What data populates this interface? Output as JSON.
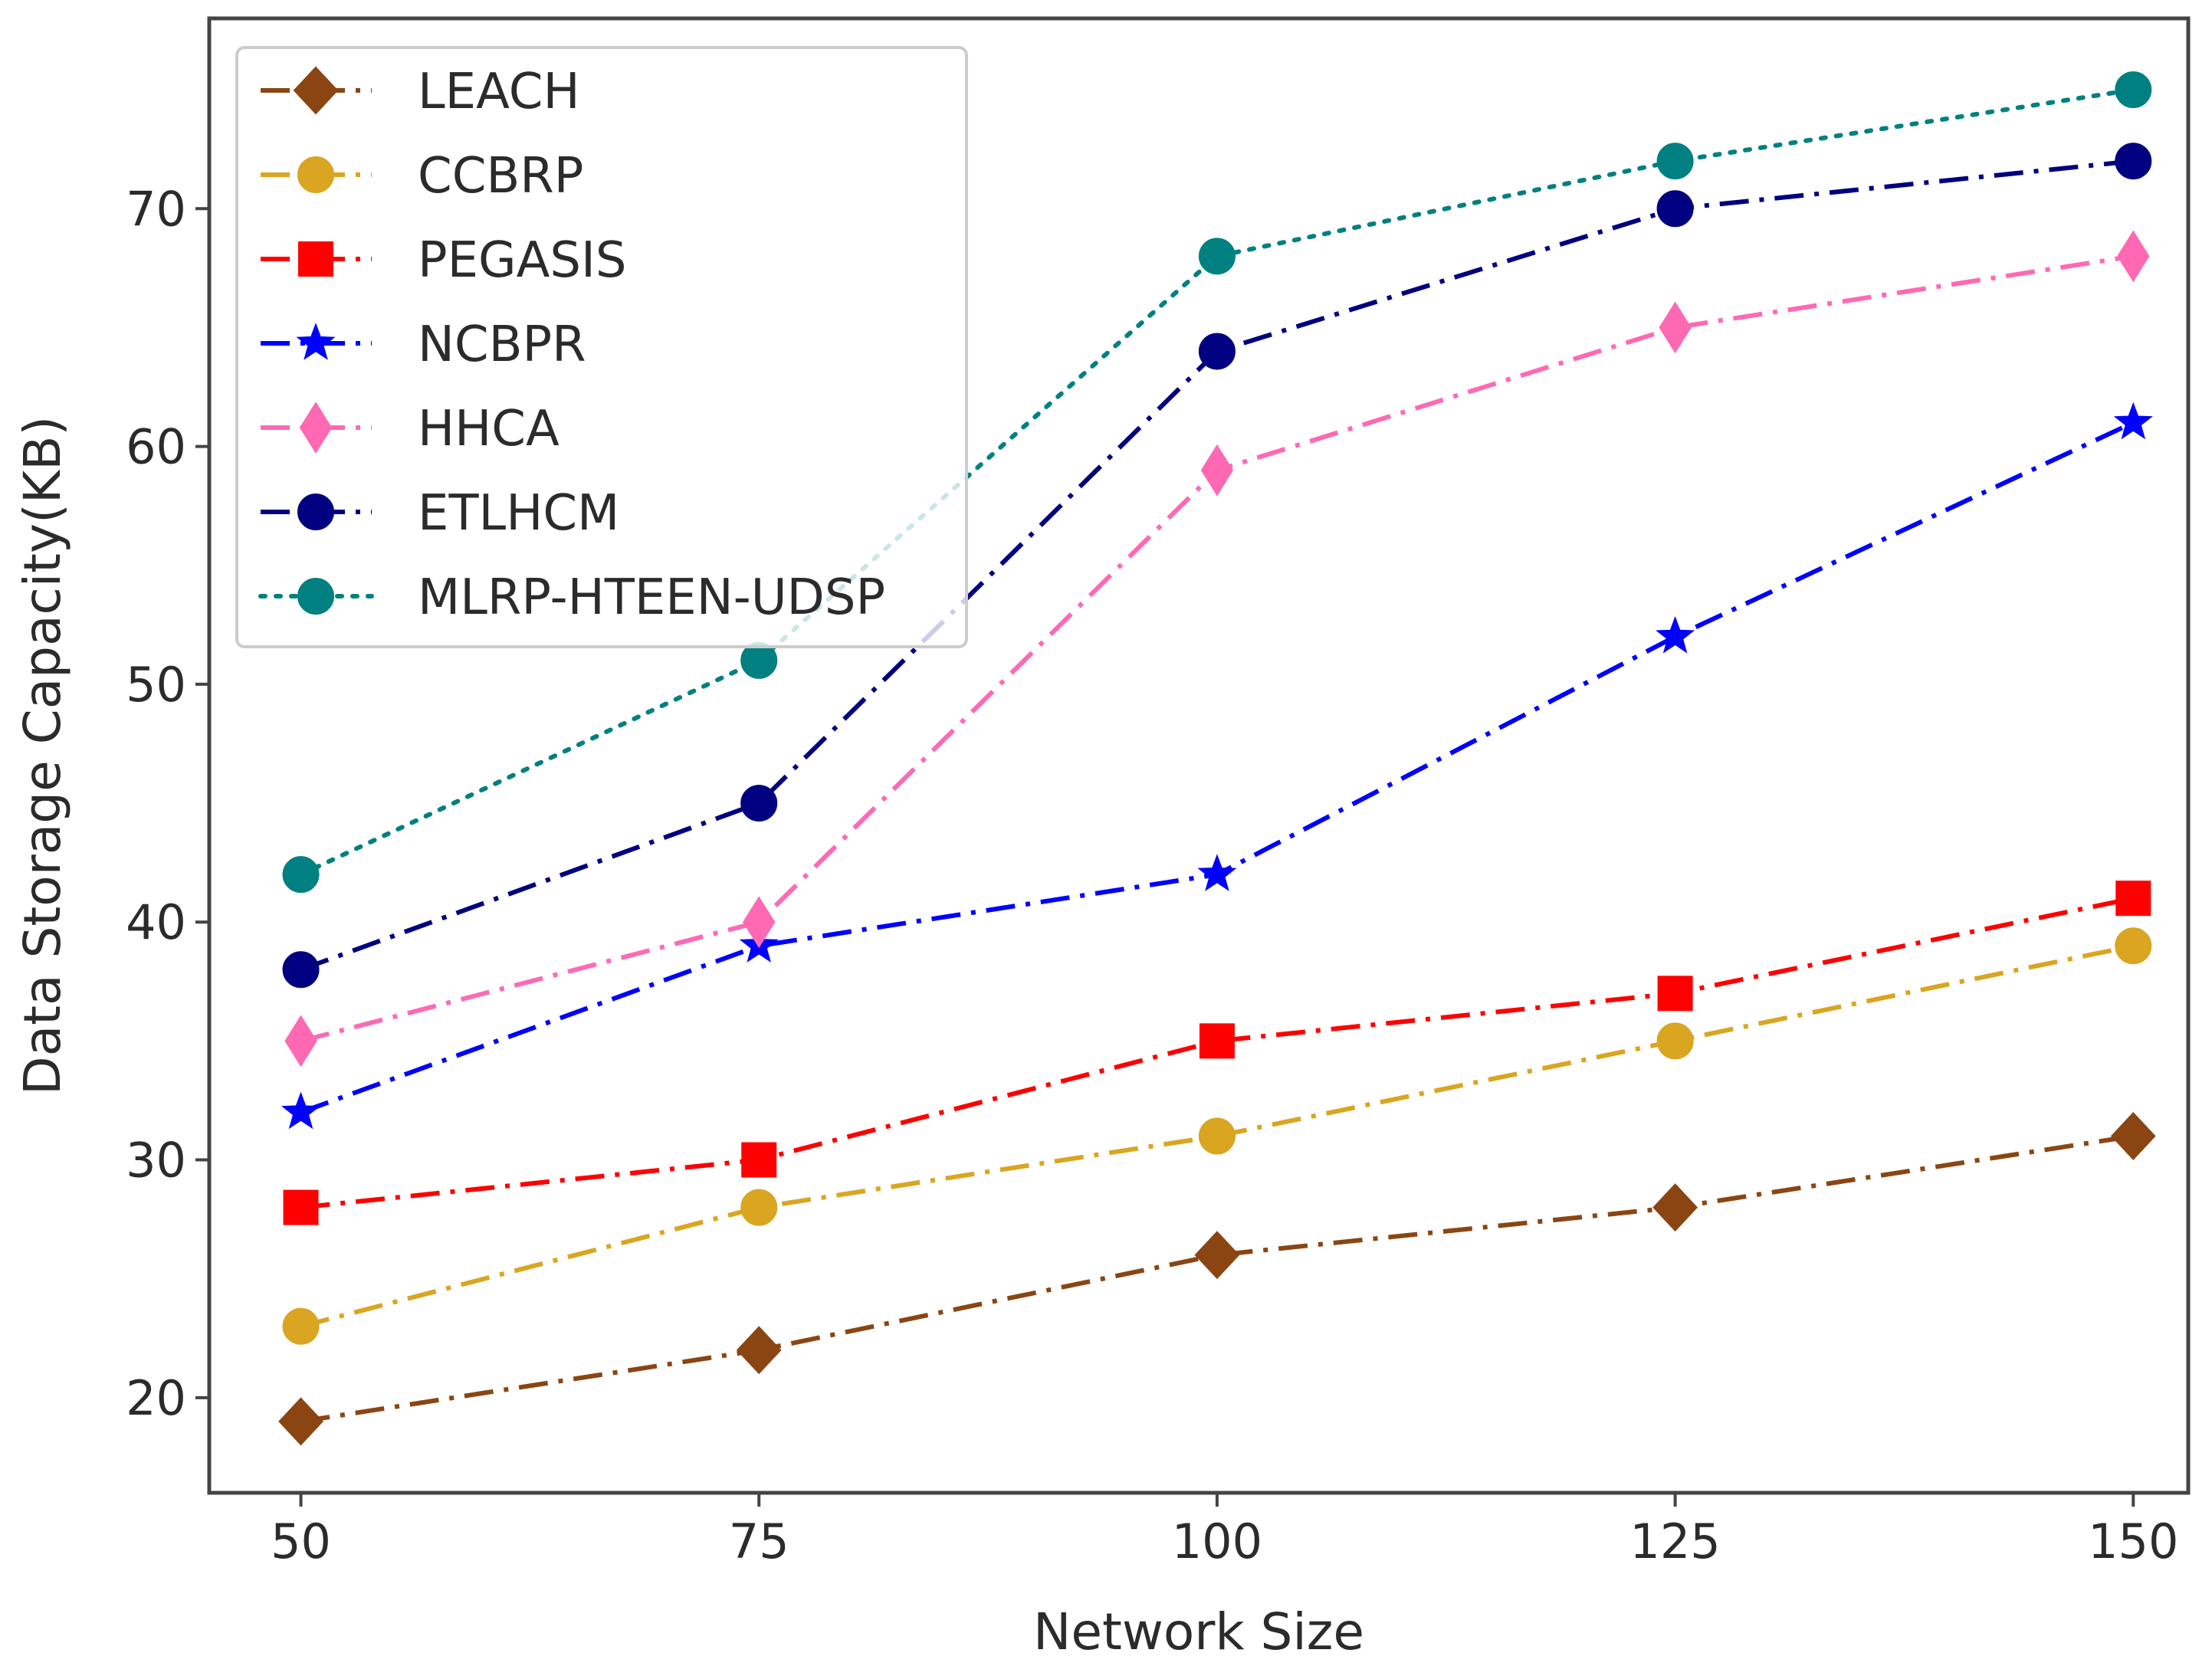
{
  "chart_data": {
    "type": "line",
    "title": "",
    "xlabel": "Network Size",
    "ylabel": "Data Storage Capacity(KB)",
    "x": [
      50,
      75,
      100,
      125,
      150
    ],
    "x_tick_labels": [
      "50",
      "75",
      "100",
      "125",
      "150"
    ],
    "y_ticks": [
      20,
      30,
      40,
      50,
      60,
      70
    ],
    "y_tick_labels": [
      "20",
      "30",
      "40",
      "50",
      "60",
      "70"
    ],
    "xlim": [
      45,
      153
    ],
    "ylim": [
      16,
      78
    ],
    "grid": false,
    "legend_position": "top-left",
    "series": [
      {
        "name": "LEACH",
        "values": [
          19,
          22,
          26,
          28,
          31
        ],
        "color": "#8B4513",
        "marker": "diamond",
        "dash": "dashdot"
      },
      {
        "name": "CCBRP",
        "values": [
          23,
          28,
          31,
          35,
          39
        ],
        "color": "#DAA520",
        "marker": "circle",
        "dash": "dashdot"
      },
      {
        "name": "PEGASIS",
        "values": [
          28,
          30,
          35,
          37,
          41
        ],
        "color": "#FF0000",
        "marker": "square",
        "dash": "dashdot"
      },
      {
        "name": "NCBPR",
        "values": [
          32,
          39,
          42,
          52,
          61
        ],
        "color": "#0000FF",
        "marker": "star",
        "dash": "dashdot"
      },
      {
        "name": "HHCA",
        "values": [
          35,
          40,
          59,
          65,
          68
        ],
        "color": "#FF69B4",
        "marker": "thin-diamond",
        "dash": "dashdot"
      },
      {
        "name": "ETLHCM",
        "values": [
          38,
          45,
          64,
          70,
          72
        ],
        "color": "#000080",
        "marker": "circle",
        "dash": "dashdot"
      },
      {
        "name": "MLRP-HTEEN-UDSP",
        "values": [
          42,
          51,
          68,
          72,
          75
        ],
        "color": "#008080",
        "marker": "circle",
        "dash": "dotted"
      }
    ]
  }
}
